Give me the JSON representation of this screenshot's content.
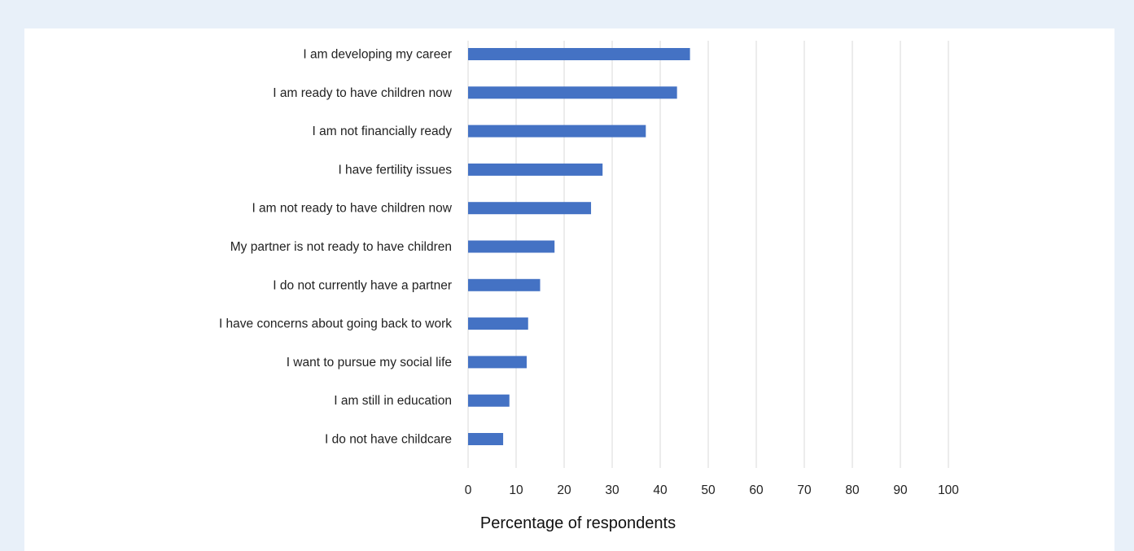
{
  "chart_data": {
    "type": "bar",
    "orientation": "horizontal",
    "categories": [
      "I am developing my career",
      "I am ready to have children now",
      "I am not financially ready",
      "I have fertility issues",
      "I am not ready to have children now",
      "My partner is not ready to have children",
      "I do not currently have a partner",
      "I have concerns about going back to work",
      "I want to pursue my social life",
      "I am still in education",
      "I do not have childcare"
    ],
    "values": [
      46.2,
      43.5,
      37.0,
      28.0,
      25.6,
      18.0,
      15.0,
      12.5,
      12.2,
      8.6,
      7.3
    ],
    "xlabel": "Percentage of respondents",
    "ylabel": "",
    "xlim": [
      0,
      100
    ],
    "xticks": [
      "0",
      "10",
      "20",
      "30",
      "40",
      "50",
      "60",
      "70",
      "80",
      "90",
      "100"
    ],
    "grid": "vertical",
    "bar_color": "#4472c4",
    "grid_color": "#d9d9d9"
  }
}
